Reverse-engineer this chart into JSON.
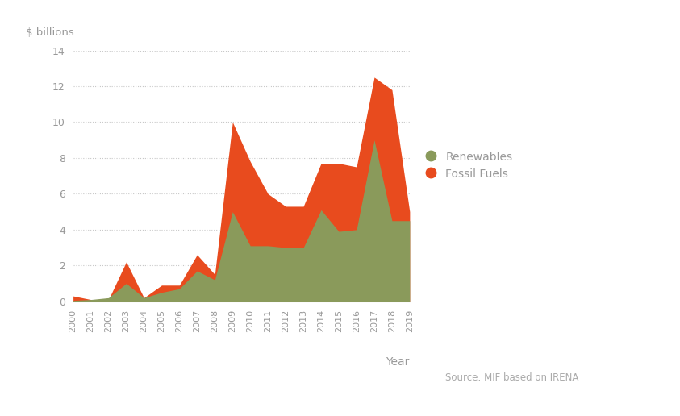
{
  "years": [
    2000,
    2001,
    2002,
    2003,
    2004,
    2005,
    2006,
    2007,
    2008,
    2009,
    2010,
    2011,
    2012,
    2013,
    2014,
    2015,
    2016,
    2017,
    2018,
    2019
  ],
  "renewables": [
    0.05,
    0.1,
    0.2,
    1.0,
    0.2,
    0.5,
    0.7,
    1.7,
    1.2,
    5.0,
    3.1,
    3.1,
    3.0,
    3.0,
    5.1,
    3.9,
    4.0,
    9.0,
    4.5,
    4.5
  ],
  "fossil_fuels": [
    0.3,
    0.1,
    0.1,
    2.2,
    0.2,
    0.9,
    0.9,
    2.6,
    1.5,
    10.0,
    7.8,
    6.0,
    5.3,
    5.3,
    7.7,
    7.7,
    7.5,
    12.5,
    11.8,
    5.0
  ],
  "renewables_color": "#8a9a5b",
  "fossil_fuels_color": "#e84b1e",
  "background_color": "#ffffff",
  "ylabel": "$ billions",
  "xlabel": "Year",
  "source_text": "Source: MIF based on IRENA",
  "ylim": [
    0,
    14.0
  ],
  "yticks": [
    0.0,
    2.0,
    4.0,
    6.0,
    8.0,
    10.0,
    12.0,
    14.0
  ],
  "grid_color": "#c8c8c8",
  "legend_labels": [
    "Renewables",
    "Fossil Fuels"
  ],
  "border_color": "#d0d0d0",
  "tick_color": "#999999",
  "label_color": "#999999"
}
